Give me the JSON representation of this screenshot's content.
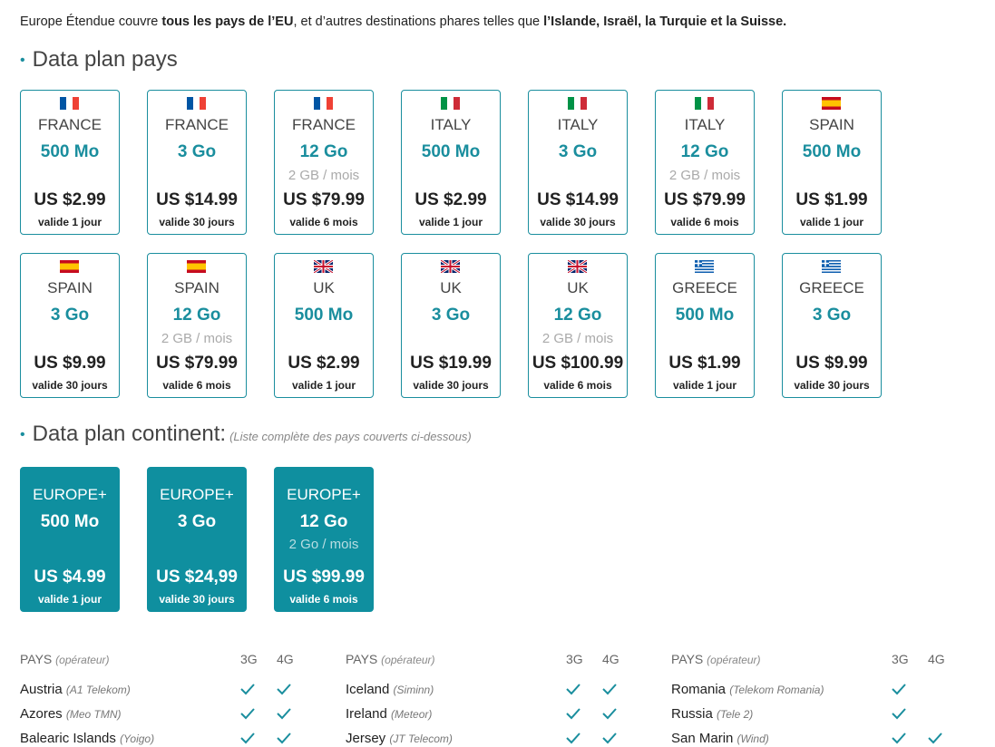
{
  "intro": {
    "parts": [
      "Europe Étendue couvre ",
      "tous les pays de l’EU",
      ", et d’autres destinations phares telles que ",
      "l’Islande, Israël, la Turquie et la Suisse."
    ]
  },
  "country_plans": {
    "title": "Data plan pays",
    "plans": [
      {
        "country": "FRANCE",
        "data": "500 Mo",
        "price": "US $2.99",
        "validity": "valide 1 jour"
      },
      {
        "country": "FRANCE",
        "data": "3 Go",
        "price": "US $14.99",
        "validity": "valide 30 jours"
      },
      {
        "country": "FRANCE",
        "data": "12 Go",
        "monthly": "2 GB / mois",
        "price": "US $79.99",
        "validity": "valide 6 mois"
      },
      {
        "country": "ITALY",
        "data": "500 Mo",
        "price": "US $2.99",
        "validity": "valide 1 jour"
      },
      {
        "country": "ITALY",
        "data": "3 Go",
        "price": "US $14.99",
        "validity": "valide 30 jours"
      },
      {
        "country": "ITALY",
        "data": "12 Go",
        "monthly": "2 GB / mois",
        "price": "US $79.99",
        "validity": "valide 6 mois"
      },
      {
        "country": "SPAIN",
        "data": "500 Mo",
        "price": "US $1.99",
        "validity": "valide 1 jour"
      },
      {
        "country": "SPAIN",
        "data": "3 Go",
        "price": "US $9.99",
        "validity": "valide 30 jours"
      },
      {
        "country": "SPAIN",
        "data": "12 Go",
        "monthly": "2 GB / mois",
        "price": "US $79.99",
        "validity": "valide 6 mois"
      },
      {
        "country": "UK",
        "data": "500 Mo",
        "price": "US $2.99",
        "validity": "valide 1 jour"
      },
      {
        "country": "UK",
        "data": "3 Go",
        "price": "US $19.99",
        "validity": "valide 30 jours"
      },
      {
        "country": "UK",
        "data": "12 Go",
        "monthly": "2 GB / mois",
        "price": "US $100.99",
        "validity": "valide 6 mois"
      },
      {
        "country": "GREECE",
        "data": "500 Mo",
        "price": "US $1.99",
        "validity": "valide 1 jour"
      },
      {
        "country": "GREECE",
        "data": "3 Go",
        "price": "US $9.99",
        "validity": "valide 30 jours"
      }
    ]
  },
  "continent_plans": {
    "title": "Data plan continent:",
    "note": "(Liste complète des pays couverts ci-dessous)",
    "plans": [
      {
        "country": "EUROPE+",
        "data": "500 Mo",
        "price": "US $4.99",
        "validity": "valide 1 jour"
      },
      {
        "country": "EUROPE+",
        "data": "3 Go",
        "price": "US $24,99",
        "validity": "valide 30 jours"
      },
      {
        "country": "EUROPE+",
        "data": "12 Go",
        "monthly": "2 Go / mois",
        "price": "US $99.99",
        "validity": "valide 6 mois"
      }
    ]
  },
  "coverage": {
    "header": {
      "country": "PAYS",
      "operator": "(opérateur)",
      "g3": "3G",
      "g4": "4G"
    },
    "columns": [
      [
        {
          "country": "Austria",
          "operator": "(A1 Telekom)",
          "g3": true,
          "g4": true
        },
        {
          "country": "Azores",
          "operator": "(Meo TMN)",
          "g3": true,
          "g4": true
        },
        {
          "country": "Balearic Islands",
          "operator": "(Yoigo)",
          "g3": true,
          "g4": true
        }
      ],
      [
        {
          "country": "Iceland",
          "operator": "(Siminn)",
          "g3": true,
          "g4": true
        },
        {
          "country": "Ireland",
          "operator": "(Meteor)",
          "g3": true,
          "g4": true
        },
        {
          "country": "Jersey",
          "operator": "(JT Telecom)",
          "g3": true,
          "g4": true
        }
      ],
      [
        {
          "country": "Romania",
          "operator": "(Telekom Romania)",
          "g3": true,
          "g4": false
        },
        {
          "country": "Russia",
          "operator": "(Tele 2)",
          "g3": true,
          "g4": false
        },
        {
          "country": "San Marin",
          "operator": "(Wind)",
          "g3": true,
          "g4": true
        }
      ]
    ]
  }
}
